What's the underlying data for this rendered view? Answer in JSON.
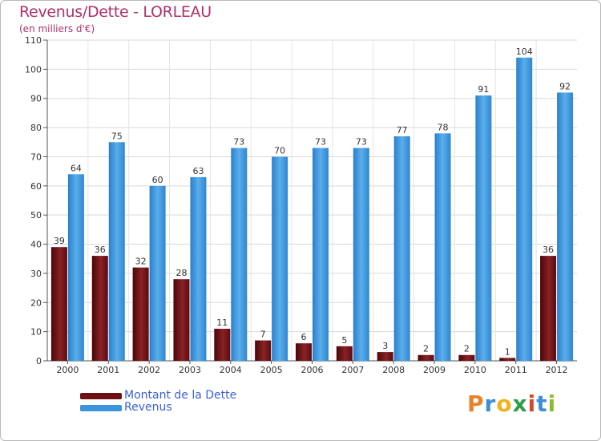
{
  "chart_data": {
    "type": "bar",
    "title": "Revenus/Dette - LORLEAU",
    "subtitle": "(en milliers d'€)",
    "categories": [
      "2000",
      "2001",
      "2002",
      "2003",
      "2004",
      "2005",
      "2006",
      "2007",
      "2008",
      "2009",
      "2010",
      "2011",
      "2012"
    ],
    "series": [
      {
        "name": "Montant de la Dette",
        "color": "#6e0f12",
        "values": [
          39,
          36,
          32,
          28,
          11,
          7,
          6,
          5,
          3,
          2,
          2,
          1,
          36
        ]
      },
      {
        "name": "Revenus",
        "color": "#3a95de",
        "values": [
          64,
          75,
          60,
          63,
          73,
          70,
          73,
          73,
          77,
          78,
          91,
          104,
          92
        ]
      }
    ],
    "yticks": [
      0,
      10,
      20,
      30,
      40,
      50,
      60,
      70,
      80,
      90,
      100,
      110
    ],
    "ylim": [
      0,
      110
    ],
    "grid": true,
    "legend": "bottom-left"
  },
  "brand": {
    "letters": [
      "P",
      "r",
      "o",
      "x",
      "i",
      "t",
      "i"
    ],
    "colors": [
      "#e8822a",
      "#3b8fd8",
      "#f2b21c",
      "#2e9d4a",
      "#d8442c",
      "#3b8fd8",
      "#8bbd2a"
    ]
  }
}
